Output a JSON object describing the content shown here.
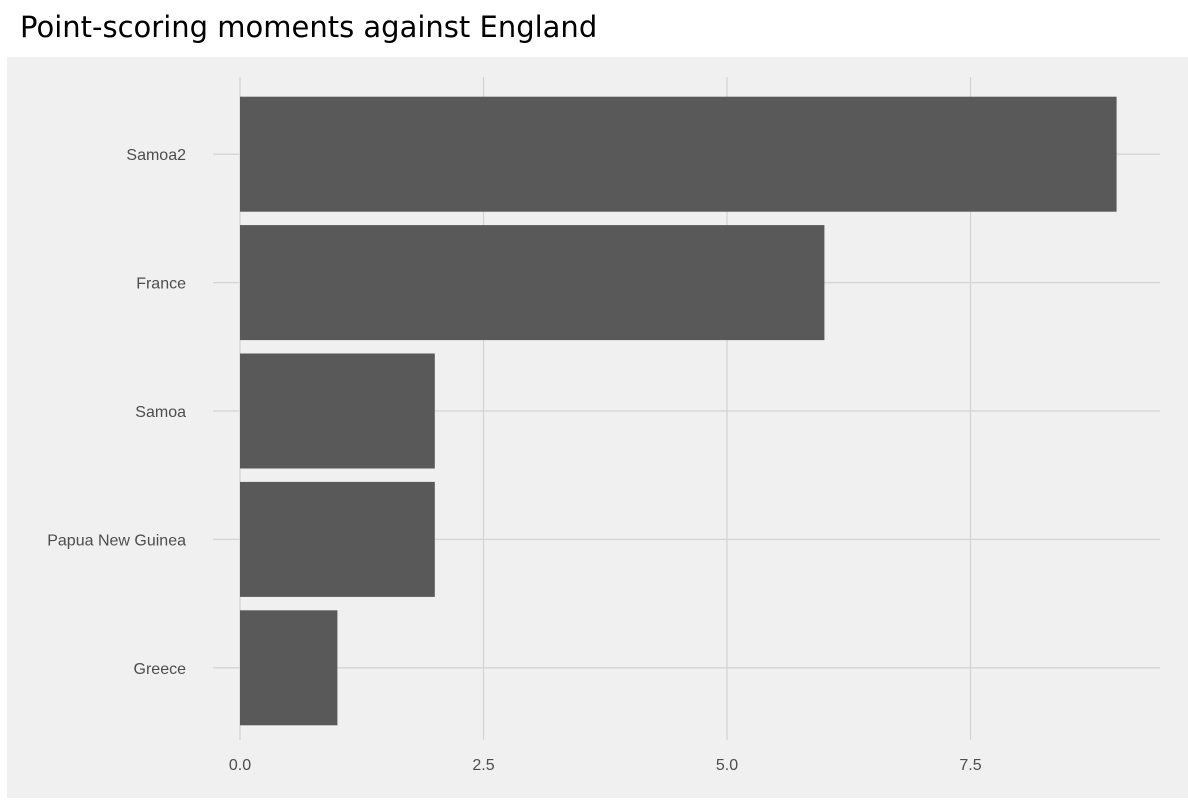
{
  "chart_data": {
    "type": "bar",
    "orientation": "horizontal",
    "title": "Point-scoring moments against England",
    "xlabel": "",
    "ylabel": "",
    "categories": [
      "Samoa2",
      "France",
      "Samoa",
      "Papua New Guinea",
      "Greece"
    ],
    "values": [
      9,
      6,
      2,
      2,
      1
    ],
    "xlim": [
      0,
      9.45
    ],
    "x_ticks": [
      0,
      2.5,
      5,
      7.5
    ],
    "x_tick_labels": [
      "0.0",
      "2.5",
      "5.0",
      "7.5"
    ],
    "grid": true,
    "legend": "none",
    "colors": {
      "bar": "#595959",
      "panel_background": "#f0f0f0",
      "grid": "#d4d4d4",
      "tick_text": "#4d4d4d"
    }
  }
}
